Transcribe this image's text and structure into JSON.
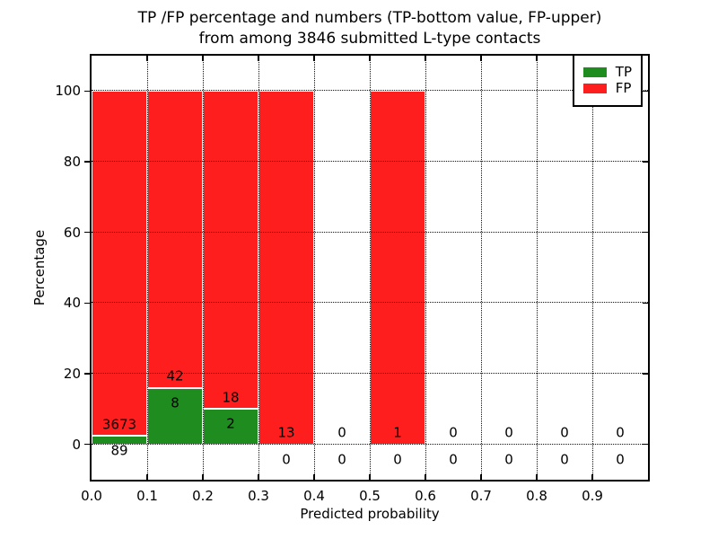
{
  "figure": {
    "title_line1": "TP /FP percentage and numbers (TP-bottom value, FP-upper)",
    "title_line2": "from among 3846 submitted L-type contacts"
  },
  "chart_data": {
    "type": "bar",
    "stacked": true,
    "title": "TP /FP percentage and numbers (TP-bottom value, FP-upper) from among 3846 submitted L-type contacts",
    "xlabel": "Predicted probability",
    "ylabel": "Percentage",
    "xlim": [
      0.0,
      1.0
    ],
    "ylim": [
      -10,
      110
    ],
    "x_ticks": [
      "0.0",
      "0.1",
      "0.2",
      "0.3",
      "0.4",
      "0.5",
      "0.6",
      "0.7",
      "0.8",
      "0.9"
    ],
    "y_ticks": [
      0,
      20,
      40,
      60,
      80,
      100
    ],
    "grid": "dotted, drawn above bars",
    "total_contacts": 3846,
    "legend": {
      "position": "upper right",
      "entries": [
        {
          "label": "TP",
          "color": "#1e8c1e"
        },
        {
          "label": "FP",
          "color": "#ff1e1e"
        }
      ]
    },
    "colors": {
      "tp": "#1e8c1e",
      "fp": "#ff1e1e",
      "bar_edge": "#ffffff"
    },
    "bins": [
      {
        "range": [
          0.0,
          0.1
        ],
        "tp": 89,
        "fp": 3673,
        "tp_pct": 2.37,
        "stack_top_pct": 100
      },
      {
        "range": [
          0.1,
          0.2
        ],
        "tp": 8,
        "fp": 42,
        "tp_pct": 16.0,
        "stack_top_pct": 100
      },
      {
        "range": [
          0.2,
          0.3
        ],
        "tp": 2,
        "fp": 18,
        "tp_pct": 10.0,
        "stack_top_pct": 100
      },
      {
        "range": [
          0.3,
          0.4
        ],
        "tp": 0,
        "fp": 13,
        "tp_pct": 0,
        "stack_top_pct": 100
      },
      {
        "range": [
          0.4,
          0.5
        ],
        "tp": 0,
        "fp": 0,
        "tp_pct": 0,
        "stack_top_pct": 0
      },
      {
        "range": [
          0.5,
          0.6
        ],
        "tp": 0,
        "fp": 1,
        "tp_pct": 0,
        "stack_top_pct": 100
      },
      {
        "range": [
          0.6,
          0.7
        ],
        "tp": 0,
        "fp": 0,
        "tp_pct": 0,
        "stack_top_pct": 0
      },
      {
        "range": [
          0.7,
          0.8
        ],
        "tp": 0,
        "fp": 0,
        "tp_pct": 0,
        "stack_top_pct": 0
      },
      {
        "range": [
          0.8,
          0.9
        ],
        "tp": 0,
        "fp": 0,
        "tp_pct": 0,
        "stack_top_pct": 0
      },
      {
        "range": [
          0.9,
          1.0
        ],
        "tp": 0,
        "fp": 0,
        "tp_pct": 0,
        "stack_top_pct": 0
      }
    ],
    "annotation_offsets": {
      "fp_label_above_tp_top": 3.2,
      "tp_label_below_tp_top": 4.3
    }
  }
}
